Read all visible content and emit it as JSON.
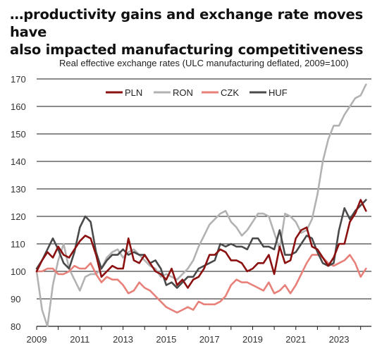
{
  "header": {
    "title_line1": "…productivity gains and exchange rate moves have",
    "title_line2": "also impacted manufacturing competitiveness"
  },
  "chart_data": {
    "type": "line",
    "title": "Real effective exchange rates (ULC manufacturing deflated, 2009=100)",
    "xlabel": "",
    "ylabel": "",
    "xlim": [
      2009,
      2024.5
    ],
    "ylim": [
      80,
      170
    ],
    "yticks": [
      80,
      90,
      100,
      110,
      120,
      130,
      140,
      150,
      160,
      170
    ],
    "xticks": [
      2009,
      2011,
      2013,
      2015,
      2017,
      2019,
      2021,
      2023
    ],
    "grid": "horizontal",
    "legend_position": "top",
    "x": [
      2009.0,
      2009.25,
      2009.5,
      2009.75,
      2010.0,
      2010.25,
      2010.5,
      2010.75,
      2011.0,
      2011.25,
      2011.5,
      2011.75,
      2012.0,
      2012.25,
      2012.5,
      2012.75,
      2013.0,
      2013.25,
      2013.5,
      2013.75,
      2014.0,
      2014.25,
      2014.5,
      2014.75,
      2015.0,
      2015.25,
      2015.5,
      2015.75,
      2016.0,
      2016.25,
      2016.5,
      2016.75,
      2017.0,
      2017.25,
      2017.5,
      2017.75,
      2018.0,
      2018.25,
      2018.5,
      2018.75,
      2019.0,
      2019.25,
      2019.5,
      2019.75,
      2020.0,
      2020.25,
      2020.5,
      2020.75,
      2021.0,
      2021.25,
      2021.5,
      2021.75,
      2022.0,
      2022.25,
      2022.5,
      2022.75,
      2023.0,
      2023.25,
      2023.5,
      2023.75,
      2024.0,
      2024.25
    ],
    "series": [
      {
        "name": "PLN",
        "color": "#8b1010",
        "values": [
          100,
          104,
          107,
          105,
          109,
          106,
          105,
          108,
          111,
          113,
          112,
          106,
          98,
          100,
          102,
          101,
          101,
          112,
          104,
          103,
          106,
          103,
          100,
          99,
          97,
          101,
          95,
          97,
          94,
          97,
          98,
          101,
          106,
          106,
          108,
          107,
          104,
          104,
          103,
          100,
          101,
          103,
          103,
          106,
          99,
          109,
          103,
          104,
          112,
          115,
          116,
          109,
          108,
          105,
          102,
          105,
          110,
          110,
          118,
          121,
          126,
          122
        ]
      },
      {
        "name": "RON",
        "color": "#b2b2b2",
        "values": [
          100,
          86,
          80,
          95,
          104,
          110,
          101,
          97,
          93,
          98,
          99,
          99,
          101,
          105,
          107,
          108,
          105,
          107,
          108,
          106,
          104,
          102,
          101,
          98,
          99,
          98,
          97,
          99,
          101,
          104,
          109,
          113,
          117,
          119,
          121,
          122,
          118,
          116,
          113,
          115,
          118,
          121,
          121,
          120,
          114,
          108,
          121,
          120,
          118,
          114,
          115,
          119,
          128,
          140,
          148,
          153,
          153,
          157,
          160,
          163,
          164,
          168
        ]
      },
      {
        "name": "CZK",
        "color": "#e8807a",
        "values": [
          100,
          100,
          101,
          101,
          99,
          99,
          100,
          102,
          101,
          101,
          103,
          99,
          96,
          98,
          97,
          97,
          95,
          92,
          93,
          96,
          94,
          93,
          91,
          89,
          87,
          86,
          85,
          86,
          87,
          86,
          89,
          88,
          88,
          88,
          89,
          91,
          95,
          97,
          96,
          96,
          95,
          94,
          93,
          96,
          92,
          93,
          95,
          92,
          95,
          99,
          103,
          106,
          106,
          105,
          103,
          102,
          103,
          104,
          106,
          103,
          98,
          101
        ]
      },
      {
        "name": "HUF",
        "color": "#4a4a4a",
        "values": [
          101,
          104,
          108,
          112,
          108,
          103,
          101,
          107,
          116,
          120,
          118,
          107,
          101,
          104,
          106,
          106,
          108,
          106,
          107,
          106,
          106,
          103,
          104,
          101,
          95,
          96,
          94,
          96,
          98,
          98,
          101,
          102,
          103,
          104,
          110,
          109,
          110,
          109,
          109,
          108,
          112,
          112,
          109,
          109,
          108,
          115,
          106,
          106,
          107,
          110,
          113,
          112,
          107,
          103,
          102,
          103,
          115,
          123,
          119,
          122,
          124,
          126
        ]
      }
    ]
  }
}
